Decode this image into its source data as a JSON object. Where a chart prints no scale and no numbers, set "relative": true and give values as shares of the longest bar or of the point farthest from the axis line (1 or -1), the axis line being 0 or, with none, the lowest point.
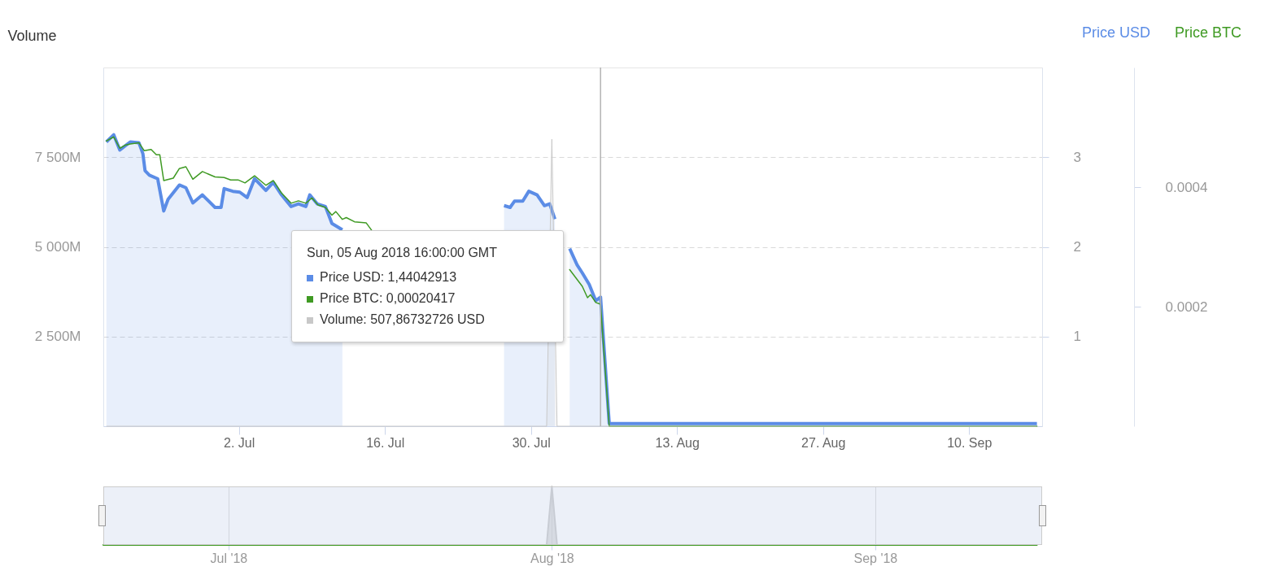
{
  "chart_data": [
    {
      "type": "line",
      "ylabel": "Volume",
      "legend": "top right",
      "grid": "y",
      "xlim": [
        "2018-06-19",
        "2018-09-17"
      ],
      "xticks": [
        {
          "value": "2018-07-02",
          "label": "2. Jul"
        },
        {
          "value": "2018-07-16",
          "label": "16. Jul"
        },
        {
          "value": "2018-07-30",
          "label": "30. Jul"
        },
        {
          "value": "2018-08-13",
          "label": "13. Aug"
        },
        {
          "value": "2018-08-27",
          "label": "27. Aug"
        },
        {
          "value": "2018-09-10",
          "label": "10. Sep"
        }
      ],
      "ylim": [
        0,
        10000
      ],
      "yticks": [
        {
          "value": 2500,
          "label": "2 500M"
        },
        {
          "value": 5000,
          "label": "5 000M"
        },
        {
          "value": 7500,
          "label": "7 500M"
        }
      ],
      "y2lim": [
        0,
        4
      ],
      "y2ticks": [
        1,
        2,
        3
      ],
      "y3lim": [
        0,
        0.0006
      ],
      "y3ticks": [
        0.0002,
        0.0004
      ],
      "ref_lines": [
        {
          "axis": "x",
          "value": "2018-08-05T16:00",
          "color": "#b3b3b3"
        }
      ],
      "annotations": [
        "Sun, 05 Aug 2018 16:00:00 GMT",
        "Price USD: 1,44042913",
        "Price BTC: 0,00020417",
        "Volume: 507,86732726 USD"
      ],
      "series": [
        {
          "name": "Price USD",
          "type": "area",
          "axis": "y2",
          "color": "#5b8ce6",
          "x": [
            "2018-06-19T07:00",
            "2018-06-20",
            "2018-06-20T14:00",
            "2018-06-21T14:00",
            "2018-06-22T10:00",
            "2018-06-22T19:00",
            "2018-06-23",
            "2018-06-23T10:00",
            "2018-06-24T05:00",
            "2018-06-24T19:00",
            "2018-06-25T05:00",
            "2018-06-26T07:00",
            "2018-06-26T22:00",
            "2018-06-27T14:00",
            "2018-06-28T12:00",
            "2018-06-29T17:00",
            "2018-06-30T07:00",
            "2018-06-30T14:00",
            "2018-07-01T10:00",
            "2018-07-02T02:00",
            "2018-07-02T19:00",
            "2018-07-03T12:00",
            "2018-07-04T14:00",
            "2018-07-05T07:00",
            "2018-07-06T02:00",
            "2018-07-07",
            "2018-07-07T17:00",
            "2018-07-08T10:00",
            "2018-07-08T19:00",
            "2018-07-09T12:00",
            "2018-07-10T07:00",
            "2018-07-10T22:00",
            "2018-07-11T22:00",
            "2018-07-12T14:00",
            "2018-07-20",
            "2018-07-27T02:00",
            "2018-07-27T10:00",
            "2018-07-28",
            "2018-07-28T10:00",
            "2018-07-29T05:00",
            "2018-07-29T19:00",
            "2018-07-30T14:00",
            "2018-07-31T07:00",
            "2018-07-31T19:00",
            "2018-08-01T07:00",
            "2018-08-01T12:00",
            "2018-08-02",
            "2018-08-02T17:00",
            "2018-08-03T10:00",
            "2018-08-03T22:00",
            "2018-08-04T14:00",
            "2018-08-05T05:00",
            "2018-08-05T16:00",
            "2018-08-06T12:00",
            "2018-08-20",
            "2018-09-03",
            "2018-09-16T12:00"
          ],
          "values": [
            3.17,
            3.25,
            3.08,
            3.17,
            3.16,
            3.04,
            2.85,
            2.8,
            2.76,
            2.4,
            2.53,
            2.69,
            2.66,
            2.49,
            2.58,
            2.44,
            2.44,
            2.65,
            2.62,
            2.61,
            2.55,
            2.76,
            2.63,
            2.72,
            2.58,
            2.45,
            2.48,
            2.45,
            2.58,
            2.48,
            2.45,
            2.26,
            2.19,
            null,
            null,
            null,
            2.46,
            2.44,
            2.51,
            2.51,
            2.62,
            2.58,
            2.46,
            2.48,
            2.31,
            null,
            null,
            1.98,
            1.8,
            1.71,
            1.58,
            1.4,
            1.44,
            0.03,
            0.03,
            0.03,
            0.03
          ]
        },
        {
          "name": "Price BTC",
          "axis": "y3",
          "color": "#3f9a23",
          "x": [
            "2018-06-19T07:00",
            "2018-06-20",
            "2018-06-20T14:00",
            "2018-06-21T02:00",
            "2018-06-21T14:00",
            "2018-06-22T10:00",
            "2018-06-22T22:00",
            "2018-06-23T14:00",
            "2018-06-24T02:00",
            "2018-06-24T10:00",
            "2018-06-24T19:00",
            "2018-06-25T17:00",
            "2018-06-26T07:00",
            "2018-06-26T22:00",
            "2018-06-27T14:00",
            "2018-06-28T12:00",
            "2018-06-29T17:00",
            "2018-06-30T14:00",
            "2018-07-01T05:00",
            "2018-07-01T22:00",
            "2018-07-02T14:00",
            "2018-07-03T12:00",
            "2018-07-04T14:00",
            "2018-07-05T07:00",
            "2018-07-06T02:00",
            "2018-07-07",
            "2018-07-07T17:00",
            "2018-07-08T10:00",
            "2018-07-09",
            "2018-07-09T14:00",
            "2018-07-10T07:00",
            "2018-07-10T22:00",
            "2018-07-11T07:00",
            "2018-07-11T22:00",
            "2018-07-12T07:00",
            "2018-07-13T02:00",
            "2018-07-14T05:00",
            "2018-07-14T17:00",
            "2018-07-20",
            "2018-08-02T17:00",
            "2018-08-03T22:00",
            "2018-08-04T10:00",
            "2018-08-04T17:00",
            "2018-08-05T05:00",
            "2018-08-05T16:00",
            "2018-08-06T12:00",
            "2018-08-20",
            "2018-09-03",
            "2018-09-16T12:00"
          ],
          "values": [
            0.000477,
            0.000484,
            0.000465,
            0.00047,
            0.000472,
            0.000474,
            0.000461,
            0.000463,
            0.000454,
            0.000454,
            0.000411,
            0.000415,
            0.000431,
            0.000434,
            0.000413,
            0.000426,
            0.000417,
            0.000416,
            0.000412,
            0.000412,
            0.000407,
            0.000419,
            0.000403,
            0.000411,
            0.00039,
            0.000373,
            0.000377,
            0.000373,
            0.000382,
            0.00037,
            0.000366,
            0.000353,
            0.000359,
            0.000346,
            0.000349,
            0.000342,
            0.00034,
            0.000328,
            null,
            0.000262,
            0.000234,
            0.000215,
            0.00022,
            0.000207,
            0.000204,
            0,
            0,
            0,
            0
          ]
        },
        {
          "type": "area",
          "axis": "y",
          "color": "#c8c8c8",
          "x": [
            "2018-06-19T07:00",
            "2018-07-31T12:00",
            "2018-08-01",
            "2018-08-01T12:00",
            "2018-09-16T12:00"
          ],
          "values": [
            0,
            0,
            8000,
            0,
            0
          ]
        }
      ]
    },
    {
      "type": "area",
      "relative": true,
      "grid": "x",
      "xlim": [
        "2018-06-19",
        "2018-09-17"
      ],
      "xticks": [
        {
          "value": "2018-07-01",
          "label": "Jul '18"
        },
        {
          "value": "2018-08-01",
          "label": "Aug '18"
        },
        {
          "value": "2018-09-01",
          "label": "Sep '18"
        }
      ],
      "series": [
        {
          "type": "line",
          "color": "#3f9a23",
          "x": [
            "2018-06-19",
            "2018-09-16T12:00"
          ],
          "values": [
            0,
            0
          ]
        },
        {
          "color": "#c8c8c8",
          "x": [
            "2018-07-31T12:00",
            "2018-08-01",
            "2018-08-01T12:00"
          ],
          "values": [
            0,
            1,
            0
          ]
        }
      ]
    }
  ]
}
